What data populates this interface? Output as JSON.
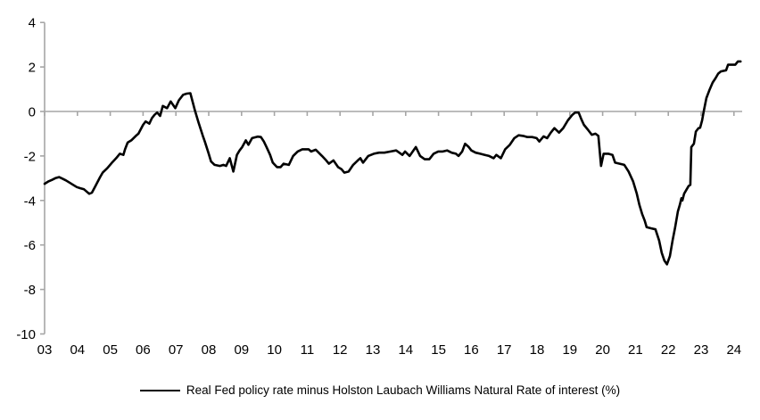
{
  "chart_data": {
    "type": "line",
    "title": "",
    "xlabel": "",
    "ylabel": "",
    "legend_position": "bottom-center",
    "grid": "zero-line-only",
    "background": "#ffffff",
    "colors": {
      "line": "#000000",
      "axis": "#a6a6a6",
      "text": "#000000"
    },
    "y_axis": {
      "min": -10,
      "max": 4,
      "tick_step": 2,
      "ticks": [
        4,
        2,
        0,
        -2,
        -4,
        -6,
        -8,
        -10
      ]
    },
    "x_axis": {
      "start_year": 2003,
      "end_year": 2024,
      "tick_labels": [
        "03",
        "04",
        "05",
        "06",
        "07",
        "08",
        "09",
        "10",
        "11",
        "12",
        "13",
        "14",
        "15",
        "16",
        "17",
        "18",
        "19",
        "20",
        "21",
        "22",
        "23",
        "24"
      ]
    },
    "series": [
      {
        "name": "Real Fed policy rate minus Holston Laubach Williams Natural Rate of interest (%)",
        "color": "#000000",
        "points": [
          [
            2003.0,
            -3.25
          ],
          [
            2003.11,
            -3.15
          ],
          [
            2003.22,
            -3.08
          ],
          [
            2003.33,
            -3.0
          ],
          [
            2003.44,
            -2.95
          ],
          [
            2003.54,
            -3.02
          ],
          [
            2003.65,
            -3.1
          ],
          [
            2003.76,
            -3.2
          ],
          [
            2003.87,
            -3.3
          ],
          [
            2003.98,
            -3.4
          ],
          [
            2004.09,
            -3.45
          ],
          [
            2004.2,
            -3.5
          ],
          [
            2004.28,
            -3.6
          ],
          [
            2004.36,
            -3.7
          ],
          [
            2004.44,
            -3.65
          ],
          [
            2004.55,
            -3.35
          ],
          [
            2004.69,
            -2.95
          ],
          [
            2004.77,
            -2.75
          ],
          [
            2004.91,
            -2.55
          ],
          [
            2005.04,
            -2.32
          ],
          [
            2005.18,
            -2.1
          ],
          [
            2005.29,
            -1.9
          ],
          [
            2005.4,
            -1.95
          ],
          [
            2005.45,
            -1.7
          ],
          [
            2005.53,
            -1.4
          ],
          [
            2005.64,
            -1.3
          ],
          [
            2005.78,
            -1.1
          ],
          [
            2005.86,
            -1.0
          ],
          [
            2006.0,
            -0.6
          ],
          [
            2006.08,
            -0.45
          ],
          [
            2006.19,
            -0.55
          ],
          [
            2006.27,
            -0.3
          ],
          [
            2006.35,
            -0.15
          ],
          [
            2006.43,
            -0.05
          ],
          [
            2006.52,
            -0.2
          ],
          [
            2006.6,
            0.25
          ],
          [
            2006.73,
            0.15
          ],
          [
            2006.84,
            0.45
          ],
          [
            2006.98,
            0.15
          ],
          [
            2007.09,
            0.5
          ],
          [
            2007.22,
            0.75
          ],
          [
            2007.33,
            0.8
          ],
          [
            2007.44,
            0.82
          ],
          [
            2007.58,
            0.05
          ],
          [
            2007.69,
            -0.5
          ],
          [
            2007.82,
            -1.1
          ],
          [
            2007.88,
            -1.35
          ],
          [
            2007.99,
            -1.85
          ],
          [
            2008.07,
            -2.25
          ],
          [
            2008.18,
            -2.4
          ],
          [
            2008.34,
            -2.45
          ],
          [
            2008.45,
            -2.4
          ],
          [
            2008.53,
            -2.45
          ],
          [
            2008.64,
            -2.1
          ],
          [
            2008.75,
            -2.7
          ],
          [
            2008.86,
            -1.95
          ],
          [
            2008.94,
            -1.75
          ],
          [
            2009.02,
            -1.6
          ],
          [
            2009.13,
            -1.3
          ],
          [
            2009.21,
            -1.5
          ],
          [
            2009.32,
            -1.2
          ],
          [
            2009.49,
            -1.13
          ],
          [
            2009.59,
            -1.15
          ],
          [
            2009.68,
            -1.35
          ],
          [
            2009.76,
            -1.6
          ],
          [
            2009.87,
            -1.95
          ],
          [
            2009.95,
            -2.3
          ],
          [
            2010.08,
            -2.5
          ],
          [
            2010.19,
            -2.5
          ],
          [
            2010.28,
            -2.35
          ],
          [
            2010.44,
            -2.4
          ],
          [
            2010.57,
            -2.0
          ],
          [
            2010.71,
            -1.8
          ],
          [
            2010.85,
            -1.7
          ],
          [
            2011.04,
            -1.7
          ],
          [
            2011.12,
            -1.8
          ],
          [
            2011.26,
            -1.72
          ],
          [
            2011.45,
            -2.0
          ],
          [
            2011.58,
            -2.2
          ],
          [
            2011.66,
            -2.35
          ],
          [
            2011.8,
            -2.2
          ],
          [
            2011.94,
            -2.5
          ],
          [
            2012.05,
            -2.6
          ],
          [
            2012.13,
            -2.75
          ],
          [
            2012.26,
            -2.7
          ],
          [
            2012.4,
            -2.4
          ],
          [
            2012.54,
            -2.2
          ],
          [
            2012.62,
            -2.1
          ],
          [
            2012.7,
            -2.3
          ],
          [
            2012.86,
            -2.0
          ],
          [
            2013.03,
            -1.9
          ],
          [
            2013.19,
            -1.85
          ],
          [
            2013.35,
            -1.85
          ],
          [
            2013.54,
            -1.8
          ],
          [
            2013.71,
            -1.75
          ],
          [
            2013.9,
            -1.95
          ],
          [
            2013.98,
            -1.8
          ],
          [
            2014.12,
            -2.0
          ],
          [
            2014.31,
            -1.6
          ],
          [
            2014.44,
            -2.0
          ],
          [
            2014.58,
            -2.15
          ],
          [
            2014.72,
            -2.15
          ],
          [
            2014.85,
            -1.9
          ],
          [
            2014.99,
            -1.8
          ],
          [
            2015.13,
            -1.8
          ],
          [
            2015.26,
            -1.75
          ],
          [
            2015.4,
            -1.85
          ],
          [
            2015.53,
            -1.9
          ],
          [
            2015.61,
            -2.0
          ],
          [
            2015.72,
            -1.8
          ],
          [
            2015.81,
            -1.45
          ],
          [
            2015.92,
            -1.6
          ],
          [
            2016.0,
            -1.75
          ],
          [
            2016.13,
            -1.85
          ],
          [
            2016.27,
            -1.9
          ],
          [
            2016.41,
            -1.95
          ],
          [
            2016.54,
            -2.0
          ],
          [
            2016.68,
            -2.1
          ],
          [
            2016.76,
            -1.95
          ],
          [
            2016.9,
            -2.1
          ],
          [
            2017.03,
            -1.7
          ],
          [
            2017.17,
            -1.5
          ],
          [
            2017.31,
            -1.2
          ],
          [
            2017.44,
            -1.07
          ],
          [
            2017.58,
            -1.1
          ],
          [
            2017.71,
            -1.15
          ],
          [
            2017.85,
            -1.15
          ],
          [
            2017.99,
            -1.2
          ],
          [
            2018.07,
            -1.35
          ],
          [
            2018.2,
            -1.12
          ],
          [
            2018.31,
            -1.2
          ],
          [
            2018.42,
            -0.95
          ],
          [
            2018.53,
            -0.75
          ],
          [
            2018.67,
            -0.95
          ],
          [
            2018.8,
            -0.75
          ],
          [
            2018.94,
            -0.4
          ],
          [
            2019.08,
            -0.15
          ],
          [
            2019.16,
            -0.05
          ],
          [
            2019.27,
            -0.05
          ],
          [
            2019.35,
            -0.35
          ],
          [
            2019.43,
            -0.6
          ],
          [
            2019.54,
            -0.8
          ],
          [
            2019.67,
            -1.05
          ],
          [
            2019.78,
            -1.0
          ],
          [
            2019.87,
            -1.1
          ],
          [
            2019.95,
            -2.45
          ],
          [
            2020.03,
            -1.9
          ],
          [
            2020.17,
            -1.9
          ],
          [
            2020.3,
            -1.95
          ],
          [
            2020.38,
            -2.3
          ],
          [
            2020.52,
            -2.35
          ],
          [
            2020.66,
            -2.4
          ],
          [
            2020.79,
            -2.7
          ],
          [
            2020.93,
            -3.15
          ],
          [
            2021.04,
            -3.7
          ],
          [
            2021.12,
            -4.2
          ],
          [
            2021.2,
            -4.6
          ],
          [
            2021.28,
            -4.9
          ],
          [
            2021.34,
            -5.2
          ],
          [
            2021.47,
            -5.25
          ],
          [
            2021.61,
            -5.3
          ],
          [
            2021.72,
            -5.8
          ],
          [
            2021.8,
            -6.35
          ],
          [
            2021.88,
            -6.7
          ],
          [
            2021.96,
            -6.87
          ],
          [
            2022.05,
            -6.5
          ],
          [
            2022.13,
            -5.8
          ],
          [
            2022.21,
            -5.2
          ],
          [
            2022.29,
            -4.5
          ],
          [
            2022.35,
            -4.2
          ],
          [
            2022.4,
            -3.9
          ],
          [
            2022.43,
            -4.0
          ],
          [
            2022.48,
            -3.7
          ],
          [
            2022.56,
            -3.5
          ],
          [
            2022.62,
            -3.35
          ],
          [
            2022.67,
            -3.3
          ],
          [
            2022.7,
            -1.6
          ],
          [
            2022.78,
            -1.45
          ],
          [
            2022.84,
            -0.9
          ],
          [
            2022.92,
            -0.75
          ],
          [
            2022.97,
            -0.73
          ],
          [
            2023.03,
            -0.4
          ],
          [
            2023.08,
            0.0
          ],
          [
            2023.16,
            0.6
          ],
          [
            2023.25,
            0.95
          ],
          [
            2023.35,
            1.3
          ],
          [
            2023.44,
            1.5
          ],
          [
            2023.52,
            1.7
          ],
          [
            2023.6,
            1.8
          ],
          [
            2023.76,
            1.85
          ],
          [
            2023.82,
            2.1
          ],
          [
            2023.93,
            2.1
          ],
          [
            2024.04,
            2.1
          ],
          [
            2024.12,
            2.25
          ],
          [
            2024.2,
            2.25
          ]
        ]
      }
    ],
    "legend": "Real Fed policy rate minus Holston Laubach Williams Natural Rate of interest (%)"
  }
}
